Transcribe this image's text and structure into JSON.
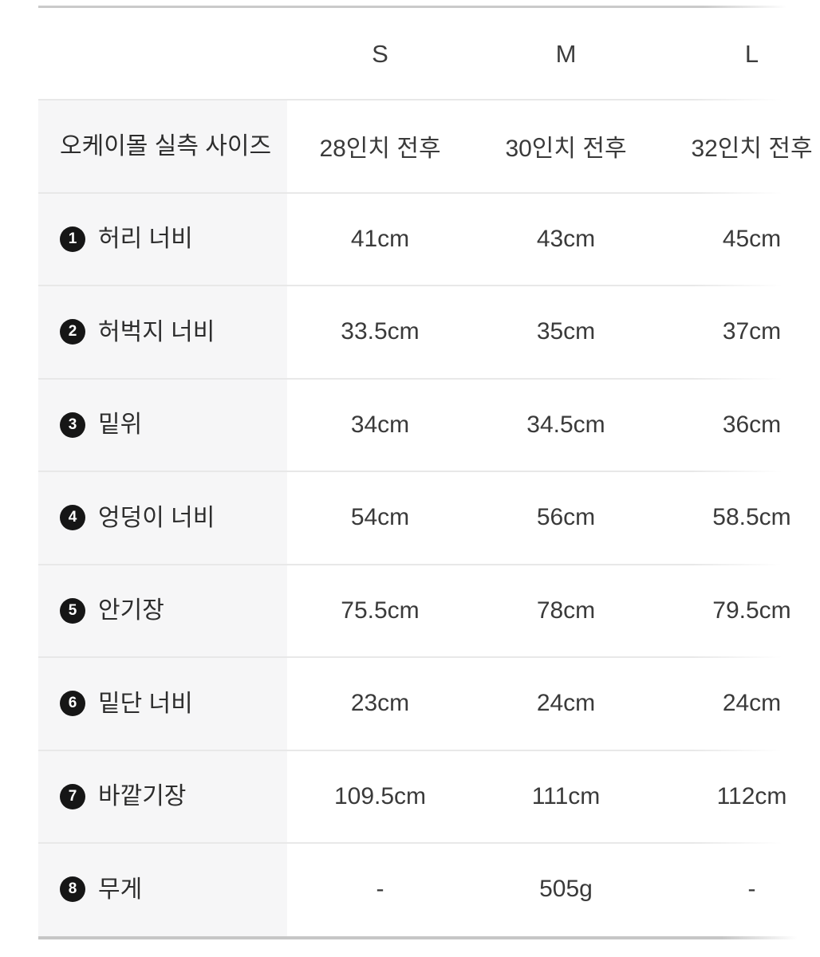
{
  "table": {
    "title": "size-spec-table",
    "size_headers": [
      "S",
      "M",
      "L"
    ],
    "colors": {
      "row_separator": "#e8e8e8",
      "frame_line_top": "#cacaca",
      "frame_line_bottom": "#c6c6c6",
      "label_column_bg": "#f6f6f7",
      "badge_bg": "#161616",
      "badge_text": "#ffffff",
      "value_text": "#3a3a3a",
      "label_text": "#2d2d2d"
    },
    "rows": [
      {
        "num": "",
        "label": "오케이몰 실측 사이즈",
        "s": "28인치 전후",
        "m": "30인치 전후",
        "l": "32인치 전후"
      },
      {
        "num": "1",
        "label": "허리 너비",
        "s": "41cm",
        "m": "43cm",
        "l": "45cm"
      },
      {
        "num": "2",
        "label": "허벅지 너비",
        "s": "33.5cm",
        "m": "35cm",
        "l": "37cm"
      },
      {
        "num": "3",
        "label": "밑위",
        "s": "34cm",
        "m": "34.5cm",
        "l": "36cm"
      },
      {
        "num": "4",
        "label": "엉덩이 너비",
        "s": "54cm",
        "m": "56cm",
        "l": "58.5cm"
      },
      {
        "num": "5",
        "label": "안기장",
        "s": "75.5cm",
        "m": "78cm",
        "l": "79.5cm"
      },
      {
        "num": "6",
        "label": "밑단 너비",
        "s": "23cm",
        "m": "24cm",
        "l": "24cm"
      },
      {
        "num": "7",
        "label": "바깥기장",
        "s": "109.5cm",
        "m": "111cm",
        "l": "112cm"
      },
      {
        "num": "8",
        "label": "무게",
        "s": "-",
        "m": "505g",
        "l": "-"
      }
    ]
  }
}
